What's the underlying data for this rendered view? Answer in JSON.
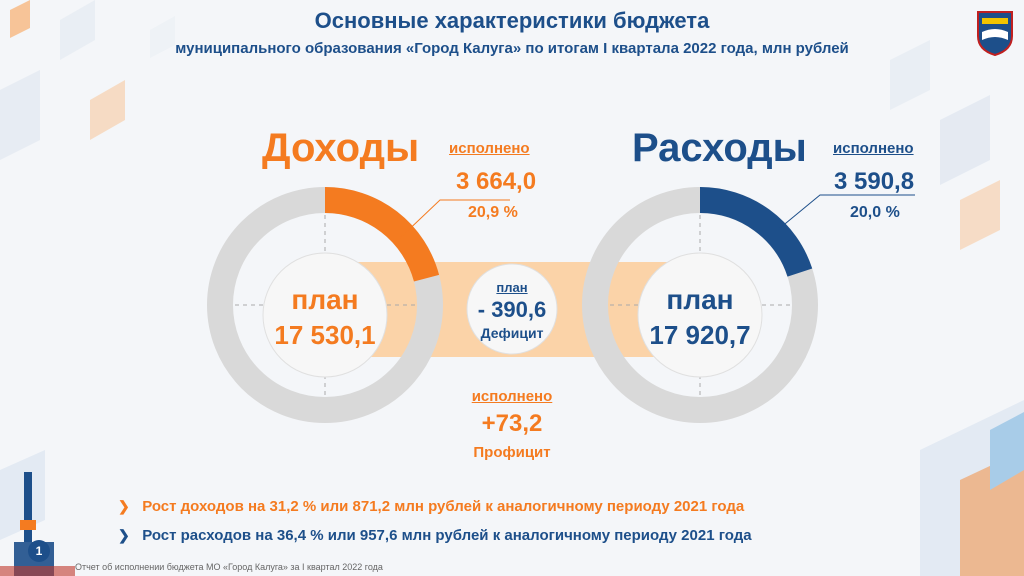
{
  "header": {
    "title": "Основные характеристики бюджета",
    "subtitle": "муниципального образования «Город Калуга» по итогам I квартала 2022 года, млн рублей"
  },
  "income": {
    "heading": "Доходы",
    "executed_label": "исполнено",
    "executed_value": "3 664,0",
    "executed_percent": "20,9 %",
    "plan_label": "план",
    "plan_value": "17 530,1",
    "progress_fraction": 0.209,
    "color": "#f47b20"
  },
  "expenses": {
    "heading": "Расходы",
    "executed_label": "исполнено",
    "executed_value": "3 590,8",
    "executed_percent": "20,0 %",
    "plan_label": "план",
    "plan_value": "17 920,7",
    "progress_fraction": 0.2,
    "color": "#1d4f8a"
  },
  "balance": {
    "plan_label": "план",
    "plan_value": "- 390,6",
    "plan_caption": "Дефицит",
    "executed_label": "исполнено",
    "executed_value": "+73,2",
    "executed_caption": "Профицит"
  },
  "bullets": [
    {
      "text": "Рост доходов на 31,2 % или 871,2 млн рублей к аналогичному периоду 2021 года",
      "color": "#f47b20"
    },
    {
      "text": "Рост расходов на 36,4 % или 957,6 млн рублей к аналогичному периоду 2021 года",
      "color": "#1d4f8a"
    }
  ],
  "page_number": "1",
  "footer": "Отчет об исполнении бюджета МО «Город Калуга» за I квартал 2022 года",
  "colors": {
    "accent_orange": "#f47b20",
    "accent_blue": "#1d4f8a",
    "ring_grey": "#d9d9d9",
    "band": "#fbd3a8"
  }
}
